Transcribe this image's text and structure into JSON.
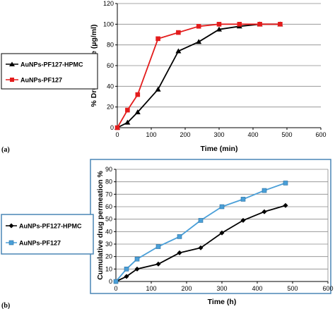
{
  "chart_data": [
    {
      "type": "line",
      "panel_label": "(a)",
      "xlabel": "Time (min)",
      "ylabel": "% Drug Release (µg/ml)",
      "xlim": [
        0,
        600
      ],
      "ylim": [
        0,
        120
      ],
      "xticks": [
        0,
        100,
        200,
        300,
        400,
        500,
        600
      ],
      "yticks": [
        0,
        20,
        40,
        60,
        80,
        100,
        120
      ],
      "grid": "horizontal",
      "legend_placement": "left, outside plot",
      "series": [
        {
          "name": "AuNPs-PF127-HPMC",
          "color": "#000000",
          "marker": "triangle",
          "x": [
            0,
            30,
            60,
            120,
            180,
            240,
            300,
            360,
            420,
            480
          ],
          "y": [
            0,
            5,
            15,
            37,
            74,
            83,
            95,
            98,
            100,
            100
          ]
        },
        {
          "name": "AuNPs-PF127",
          "color": "#e31c1c",
          "marker": "square",
          "x": [
            0,
            30,
            60,
            120,
            180,
            240,
            300,
            360,
            420,
            480
          ],
          "y": [
            0,
            17,
            32,
            86,
            92,
            98,
            100,
            100,
            100,
            100
          ]
        }
      ]
    },
    {
      "type": "line",
      "panel_label": "(b)",
      "xlabel": "Time (h)",
      "ylabel": "Cumulative drug permeation %",
      "xlim": [
        0,
        600
      ],
      "ylim": [
        0,
        90
      ],
      "xticks": [
        0,
        100,
        200,
        300,
        400,
        500,
        600
      ],
      "yticks": [
        0,
        10,
        20,
        30,
        40,
        50,
        60,
        70,
        80,
        90
      ],
      "grid": "horizontal",
      "legend_placement": "left, outside plot",
      "series": [
        {
          "name": "AuNPs-PF127-HPMC",
          "color": "#000000",
          "marker": "diamond",
          "x": [
            0,
            30,
            60,
            120,
            180,
            240,
            300,
            360,
            420,
            480
          ],
          "y": [
            0,
            4,
            10,
            14,
            23,
            27,
            39,
            49,
            56,
            61
          ]
        },
        {
          "name": "AuNPs-PF127",
          "color": "#4a9fd8",
          "marker": "square",
          "x": [
            0,
            30,
            60,
            120,
            180,
            240,
            300,
            360,
            420,
            480
          ],
          "y": [
            0,
            10,
            18,
            28,
            36,
            49,
            60,
            66,
            73,
            79
          ]
        }
      ]
    }
  ]
}
